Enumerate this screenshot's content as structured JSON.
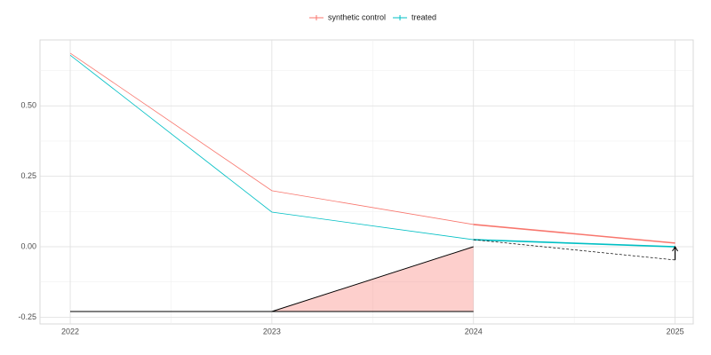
{
  "chart_data": {
    "type": "line",
    "x": [
      2022,
      2023,
      2024,
      2025
    ],
    "series": [
      {
        "name": "synthetic control",
        "color": "#F8766D",
        "values": [
          0.687,
          0.199,
          0.079,
          0.013
        ]
      },
      {
        "name": "treated",
        "color": "#00BFC4",
        "values": [
          0.68,
          0.123,
          0.025,
          0.0
        ]
      }
    ],
    "time_weights": {
      "x": [
        2022,
        2023,
        2024
      ],
      "values": [
        -0.23,
        -0.23,
        0.0
      ],
      "color": "#F8766D"
    },
    "counterfactual": {
      "x": [
        2024,
        2025
      ],
      "values": [
        0.025,
        -0.047
      ]
    },
    "xlim": [
      2021.85,
      2025.09
    ],
    "ylim": [
      -0.274,
      0.734
    ],
    "xticks": [
      2022,
      2023,
      2024,
      2025
    ],
    "yticks": [
      {
        "value": 0.5,
        "label": "0.50"
      },
      {
        "value": 0.25,
        "label": "0.25"
      },
      {
        "value": 0,
        "label": "0.00"
      },
      {
        "value": -0.25,
        "label": "-0.25"
      }
    ],
    "xminor": [
      2022.5,
      2023.5,
      2024.5
    ],
    "yminor": [
      0.625,
      0.375,
      0.125,
      -0.125
    ],
    "grid": true,
    "legend": "top"
  }
}
